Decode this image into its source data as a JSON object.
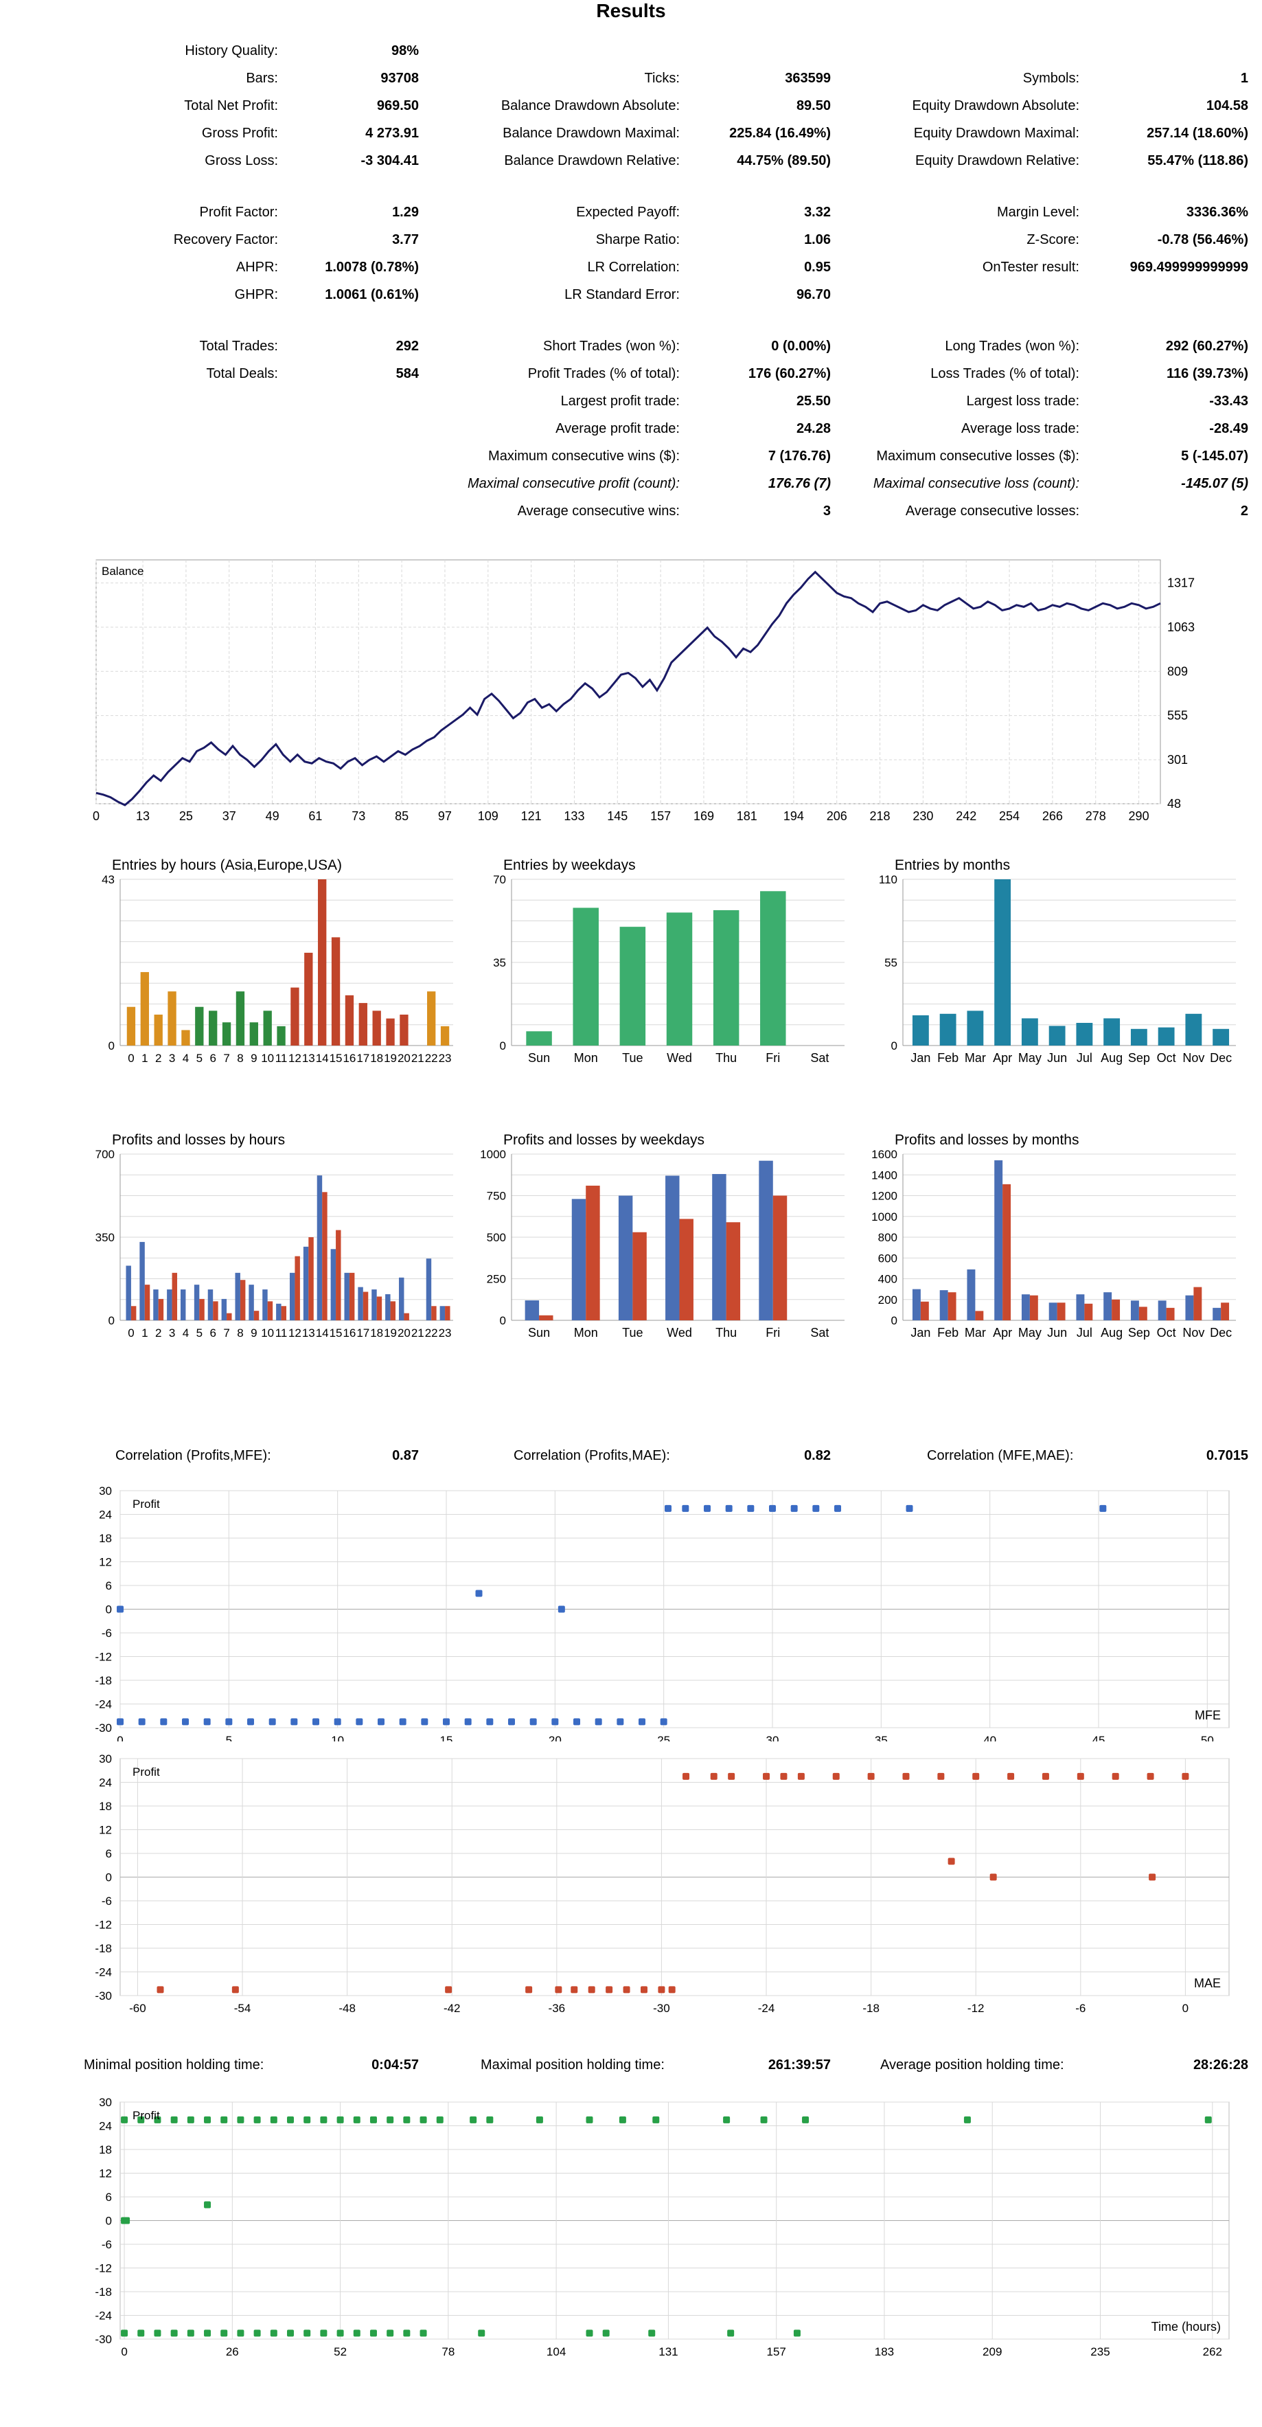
{
  "report": {
    "title": "Results",
    "stats": {
      "history_quality_label": "History Quality:",
      "history_quality": "98%",
      "bars_label": "Bars:",
      "bars": "93708",
      "ticks_label": "Ticks:",
      "ticks": "363599",
      "symbols_label": "Symbols:",
      "symbols": "1",
      "total_net_profit_label": "Total Net Profit:",
      "total_net_profit": "969.50",
      "balance_dd_abs_label": "Balance Drawdown Absolute:",
      "balance_dd_abs": "89.50",
      "equity_dd_abs_label": "Equity Drawdown Absolute:",
      "equity_dd_abs": "104.58",
      "gross_profit_label": "Gross Profit:",
      "gross_profit": "4 273.91",
      "balance_dd_max_label": "Balance Drawdown Maximal:",
      "balance_dd_max": "225.84 (16.49%)",
      "equity_dd_max_label": "Equity Drawdown Maximal:",
      "equity_dd_max": "257.14 (18.60%)",
      "gross_loss_label": "Gross Loss:",
      "gross_loss": "-3 304.41",
      "balance_dd_rel_label": "Balance Drawdown Relative:",
      "balance_dd_rel": "44.75% (89.50)",
      "equity_dd_rel_label": "Equity Drawdown Relative:",
      "equity_dd_rel": "55.47% (118.86)",
      "profit_factor_label": "Profit Factor:",
      "profit_factor": "1.29",
      "expected_payoff_label": "Expected Payoff:",
      "expected_payoff": "3.32",
      "margin_level_label": "Margin Level:",
      "margin_level": "3336.36%",
      "recovery_factor_label": "Recovery Factor:",
      "recovery_factor": "3.77",
      "sharpe_label": "Sharpe Ratio:",
      "sharpe": "1.06",
      "zscore_label": "Z-Score:",
      "zscore": "-0.78 (56.46%)",
      "ahpr_label": "AHPR:",
      "ahpr": "1.0078 (0.78%)",
      "lr_corr_label": "LR Correlation:",
      "lr_corr": "0.95",
      "ontester_label": "OnTester result:",
      "ontester": "969.499999999999",
      "ghpr_label": "GHPR:",
      "ghpr": "1.0061 (0.61%)",
      "lr_se_label": "LR Standard Error:",
      "lr_se": "96.70",
      "total_trades_label": "Total Trades:",
      "total_trades": "292",
      "short_trades_label": "Short Trades (won %):",
      "short_trades": "0 (0.00%)",
      "long_trades_label": "Long Trades (won %):",
      "long_trades": "292 (60.27%)",
      "total_deals_label": "Total Deals:",
      "total_deals": "584",
      "profit_trades_label": "Profit Trades (% of total):",
      "profit_trades": "176 (60.27%)",
      "loss_trades_label": "Loss Trades (% of total):",
      "loss_trades": "116 (39.73%)",
      "largest_profit_label": "Largest profit trade:",
      "largest_profit": "25.50",
      "largest_loss_label": "Largest loss trade:",
      "largest_loss": "-33.43",
      "avg_profit_label": "Average profit trade:",
      "avg_profit": "24.28",
      "avg_loss_label": "Average loss trade:",
      "avg_loss": "-28.49",
      "max_cons_wins_label": "Maximum consecutive wins ($):",
      "max_cons_wins": "7 (176.76)",
      "max_cons_losses_label": "Maximum consecutive losses ($):",
      "max_cons_losses": "5 (-145.07)",
      "maximal_cons_profit_label": "Maximal consecutive profit (count):",
      "maximal_cons_profit": "176.76 (7)",
      "maximal_cons_loss_label": "Maximal consecutive loss (count):",
      "maximal_cons_loss": "-145.07 (5)",
      "avg_cons_wins_label": "Average consecutive wins:",
      "avg_cons_wins": "3",
      "avg_cons_losses_label": "Average consecutive losses:",
      "avg_cons_losses": "2"
    },
    "correlations": {
      "pm_label": "Correlation (Profits,MFE):",
      "pm": "0.87",
      "pa_label": "Correlation (Profits,MAE):",
      "pa": "0.82",
      "ma_label": "Correlation (MFE,MAE):",
      "ma": "0.7015"
    },
    "holding": {
      "min_label": "Minimal position holding time:",
      "min": "0:04:57",
      "max_label": "Maximal position holding time:",
      "max": "261:39:57",
      "avg_label": "Average position holding time:",
      "avg": "28:26:28"
    }
  },
  "chart_data": [
    {
      "id": "balance",
      "type": "line",
      "title": "Balance",
      "x_ticks": [
        "0",
        "13",
        "25",
        "37",
        "49",
        "61",
        "73",
        "85",
        "97",
        "109",
        "121",
        "133",
        "145",
        "157",
        "169",
        "181",
        "194",
        "206",
        "218",
        "230",
        "242",
        "254",
        "266",
        "278",
        "290"
      ],
      "y_ticks": [
        "48",
        "301",
        "555",
        "809",
        "1063",
        "1317"
      ],
      "ylim": [
        48,
        1450
      ],
      "xlim": [
        0,
        296
      ],
      "x": [
        0,
        2,
        4,
        6,
        8,
        10,
        12,
        14,
        16,
        18,
        20,
        22,
        24,
        26,
        28,
        30,
        32,
        34,
        36,
        38,
        40,
        42,
        44,
        46,
        48,
        50,
        52,
        54,
        56,
        58,
        60,
        62,
        64,
        66,
        68,
        70,
        72,
        74,
        76,
        78,
        80,
        82,
        84,
        86,
        88,
        90,
        92,
        94,
        96,
        98,
        100,
        102,
        104,
        106,
        108,
        110,
        112,
        114,
        116,
        118,
        120,
        122,
        124,
        126,
        128,
        130,
        132,
        134,
        136,
        138,
        140,
        142,
        144,
        146,
        148,
        150,
        152,
        154,
        156,
        158,
        160,
        162,
        164,
        166,
        168,
        170,
        172,
        174,
        176,
        178,
        180,
        182,
        184,
        186,
        188,
        190,
        192,
        194,
        196,
        198,
        200,
        202,
        204,
        206,
        208,
        210,
        212,
        214,
        216,
        218,
        220,
        222,
        224,
        226,
        228,
        230,
        232,
        234,
        236,
        238,
        240,
        242,
        244,
        246,
        248,
        250,
        252,
        254,
        256,
        258,
        260,
        262,
        264,
        266,
        268,
        270,
        272,
        274,
        276,
        278,
        280,
        282,
        284,
        286,
        288,
        290,
        292,
        294,
        296
      ],
      "values": [
        110,
        100,
        85,
        60,
        40,
        75,
        120,
        170,
        210,
        180,
        230,
        270,
        310,
        290,
        350,
        370,
        400,
        360,
        330,
        380,
        330,
        300,
        260,
        300,
        350,
        390,
        330,
        290,
        330,
        290,
        280,
        310,
        290,
        280,
        250,
        290,
        310,
        270,
        300,
        320,
        290,
        320,
        350,
        330,
        360,
        380,
        410,
        430,
        470,
        500,
        530,
        560,
        600,
        560,
        650,
        680,
        640,
        590,
        540,
        570,
        630,
        650,
        600,
        620,
        580,
        620,
        650,
        700,
        740,
        710,
        660,
        690,
        740,
        790,
        800,
        770,
        720,
        760,
        700,
        770,
        860,
        900,
        940,
        980,
        1020,
        1060,
        1010,
        980,
        940,
        890,
        940,
        920,
        960,
        1020,
        1080,
        1130,
        1200,
        1250,
        1290,
        1340,
        1380,
        1340,
        1300,
        1260,
        1240,
        1230,
        1200,
        1180,
        1150,
        1200,
        1210,
        1190,
        1170,
        1150,
        1160,
        1190,
        1170,
        1160,
        1190,
        1210,
        1230,
        1200,
        1170,
        1180,
        1210,
        1190,
        1160,
        1170,
        1190,
        1180,
        1200,
        1160,
        1170,
        1190,
        1180,
        1200,
        1190,
        1170,
        1160,
        1180,
        1200,
        1190,
        1170,
        1180,
        1200,
        1190,
        1170,
        1180,
        1200
      ]
    },
    {
      "id": "entries_hours",
      "type": "bar",
      "title": "Entries by hours (Asia,Europe,USA)",
      "categories": [
        "0",
        "1",
        "2",
        "3",
        "4",
        "5",
        "6",
        "7",
        "8",
        "9",
        "10",
        "11",
        "12",
        "13",
        "14",
        "15",
        "16",
        "17",
        "18",
        "19",
        "20",
        "21",
        "22",
        "23"
      ],
      "values": [
        10,
        19,
        8,
        14,
        4,
        10,
        9,
        6,
        14,
        6,
        9,
        5,
        15,
        24,
        43,
        28,
        13,
        11,
        9,
        7,
        8,
        0,
        14,
        5
      ],
      "y_ticks": [
        "0",
        "43"
      ],
      "ylim": [
        0,
        43
      ]
    },
    {
      "id": "entries_weekdays",
      "type": "bar",
      "title": "Entries by weekdays",
      "categories": [
        "Sun",
        "Mon",
        "Tue",
        "Wed",
        "Thu",
        "Fri",
        "Sat"
      ],
      "values": [
        6,
        58,
        50,
        56,
        57,
        65,
        0
      ],
      "y_ticks": [
        "0",
        "35",
        "70"
      ],
      "ylim": [
        0,
        70
      ]
    },
    {
      "id": "entries_months",
      "type": "bar",
      "title": "Entries by months",
      "categories": [
        "Jan",
        "Feb",
        "Mar",
        "Apr",
        "May",
        "Jun",
        "Jul",
        "Aug",
        "Sep",
        "Oct",
        "Nov",
        "Dec"
      ],
      "values": [
        20,
        21,
        23,
        110,
        18,
        13,
        15,
        18,
        11,
        12,
        21,
        11
      ],
      "y_ticks": [
        "0",
        "55",
        "110"
      ],
      "ylim": [
        0,
        110
      ]
    },
    {
      "id": "pl_hours",
      "type": "bar",
      "title": "Profits and losses by hours",
      "categories": [
        "0",
        "1",
        "2",
        "3",
        "4",
        "5",
        "6",
        "7",
        "8",
        "9",
        "10",
        "11",
        "12",
        "13",
        "14",
        "15",
        "16",
        "17",
        "18",
        "19",
        "20",
        "21",
        "22",
        "23"
      ],
      "series": [
        {
          "name": "Profits",
          "values": [
            230,
            330,
            130,
            130,
            130,
            150,
            130,
            90,
            200,
            150,
            130,
            70,
            200,
            310,
            610,
            300,
            200,
            140,
            130,
            110,
            180,
            0,
            260,
            60
          ]
        },
        {
          "name": "Losses",
          "values": [
            60,
            150,
            90,
            200,
            0,
            90,
            80,
            30,
            170,
            40,
            80,
            60,
            270,
            350,
            540,
            380,
            200,
            120,
            100,
            80,
            30,
            0,
            60,
            60
          ]
        }
      ],
      "y_ticks": [
        "0",
        "350",
        "700"
      ],
      "ylim": [
        0,
        700
      ]
    },
    {
      "id": "pl_weekdays",
      "type": "bar",
      "title": "Profits and losses by weekdays",
      "categories": [
        "Sun",
        "Mon",
        "Tue",
        "Wed",
        "Thu",
        "Fri",
        "Sat"
      ],
      "series": [
        {
          "name": "Profits",
          "values": [
            120,
            730,
            750,
            870,
            880,
            960,
            0
          ]
        },
        {
          "name": "Losses",
          "values": [
            30,
            810,
            530,
            610,
            590,
            750,
            0
          ]
        }
      ],
      "y_ticks": [
        "0",
        "250",
        "500",
        "750",
        "1000"
      ],
      "ylim": [
        0,
        1000
      ]
    },
    {
      "id": "pl_months",
      "type": "bar",
      "title": "Profits and losses by months",
      "categories": [
        "Jan",
        "Feb",
        "Mar",
        "Apr",
        "May",
        "Jun",
        "Jul",
        "Aug",
        "Sep",
        "Oct",
        "Nov",
        "Dec"
      ],
      "series": [
        {
          "name": "Profits",
          "values": [
            300,
            290,
            490,
            1540,
            250,
            170,
            250,
            270,
            190,
            190,
            240,
            120
          ]
        },
        {
          "name": "Losses",
          "values": [
            180,
            270,
            90,
            1310,
            240,
            170,
            160,
            200,
            130,
            120,
            320,
            170
          ]
        }
      ],
      "y_ticks": [
        "0",
        "200",
        "400",
        "600",
        "800",
        "1000",
        "1200",
        "1400",
        "1600"
      ],
      "ylim": [
        0,
        1600
      ]
    },
    {
      "id": "mfe",
      "type": "scatter",
      "title": "Profit",
      "xlabel": "MFE",
      "x_ticks": [
        "0",
        "5",
        "10",
        "15",
        "20",
        "25",
        "30",
        "35",
        "40",
        "45",
        "50"
      ],
      "y_ticks": [
        "30",
        "24",
        "18",
        "12",
        "6",
        "0",
        "-6",
        "-12",
        "-18",
        "-24",
        "-30"
      ],
      "xlim": [
        0,
        51
      ],
      "ylim": [
        -30,
        30
      ],
      "x": [
        0,
        16.5,
        20.3,
        0,
        1,
        2,
        3,
        4,
        5,
        6,
        7,
        8,
        9,
        10,
        11,
        12,
        13,
        14,
        15,
        16,
        17,
        18,
        19,
        20,
        21,
        22,
        23,
        24,
        25,
        25.2,
        26,
        27,
        28,
        29,
        30,
        31,
        32,
        33,
        36.3,
        45.2
      ],
      "y": [
        0,
        4,
        0,
        -28.5,
        -28.5,
        -28.5,
        -28.5,
        -28.5,
        -28.5,
        -28.5,
        -28.5,
        -28.5,
        -28.5,
        -28.5,
        -28.5,
        -28.5,
        -28.5,
        -28.5,
        -28.5,
        -28.5,
        -28.5,
        -28.5,
        -28.5,
        -28.5,
        -28.5,
        -28.5,
        -28.5,
        -28.5,
        -28.5,
        25.5,
        25.5,
        25.5,
        25.5,
        25.5,
        25.5,
        25.5,
        25.5,
        25.5,
        25.5,
        25.5
      ]
    },
    {
      "id": "mae",
      "type": "scatter",
      "title": "Profit",
      "xlabel": "MAE",
      "x_ticks": [
        "-60",
        "-54",
        "-48",
        "-42",
        "-36",
        "-30",
        "-24",
        "-18",
        "-12",
        "-6",
        "0"
      ],
      "y_ticks": [
        "30",
        "24",
        "18",
        "12",
        "6",
        "0",
        "-6",
        "-12",
        "-18",
        "-24",
        "-30"
      ],
      "xlim": [
        -61,
        2.5
      ],
      "ylim": [
        -30,
        30
      ],
      "x": [
        -58.7,
        -54.4,
        -42.2,
        -37.6,
        -35.9,
        -35,
        -34,
        -33,
        -32,
        -31,
        -30,
        -29.4,
        -28.6,
        -27,
        -26,
        -24,
        -23,
        -22,
        -20,
        -18,
        -16,
        -14,
        -12,
        -10,
        -8,
        -6,
        -4,
        -2,
        0,
        -13.4,
        -11,
        -1.9
      ],
      "y": [
        -28.5,
        -28.5,
        -28.5,
        -28.5,
        -28.5,
        -28.5,
        -28.5,
        -28.5,
        -28.5,
        -28.5,
        -28.5,
        -28.5,
        25.5,
        25.5,
        25.5,
        25.5,
        25.5,
        25.5,
        25.5,
        25.5,
        25.5,
        25.5,
        25.5,
        25.5,
        25.5,
        25.5,
        25.5,
        25.5,
        25.5,
        4,
        0,
        0
      ]
    },
    {
      "id": "holding",
      "type": "scatter",
      "title": "Profit",
      "xlabel": "Time (hours)",
      "x_ticks": [
        "0",
        "26",
        "52",
        "78",
        "104",
        "131",
        "157",
        "183",
        "209",
        "235",
        "262"
      ],
      "y_ticks": [
        "30",
        "24",
        "18",
        "12",
        "6",
        "0",
        "-6",
        "-12",
        "-18",
        "-24",
        "-30"
      ],
      "xlim": [
        -1,
        266
      ],
      "ylim": [
        -30,
        30
      ],
      "x": [
        0,
        4,
        8,
        12,
        16,
        20,
        24,
        28,
        32,
        36,
        40,
        44,
        48,
        52,
        56,
        60,
        64,
        68,
        72,
        76,
        84,
        88,
        100,
        112,
        120,
        128,
        145,
        154,
        164,
        203,
        261,
        0,
        0.5,
        20,
        0,
        4,
        8,
        12,
        16,
        20,
        24,
        28,
        32,
        36,
        40,
        44,
        48,
        52,
        56,
        60,
        64,
        68,
        72,
        86,
        112,
        116,
        127,
        146,
        162
      ],
      "y": [
        25.5,
        25.5,
        25.5,
        25.5,
        25.5,
        25.5,
        25.5,
        25.5,
        25.5,
        25.5,
        25.5,
        25.5,
        25.5,
        25.5,
        25.5,
        25.5,
        25.5,
        25.5,
        25.5,
        25.5,
        25.5,
        25.5,
        25.5,
        25.5,
        25.5,
        25.5,
        25.5,
        25.5,
        25.5,
        25.5,
        25.5,
        0,
        0,
        4,
        -28.5,
        -28.5,
        -28.5,
        -28.5,
        -28.5,
        -28.5,
        -28.5,
        -28.5,
        -28.5,
        -28.5,
        -28.5,
        -28.5,
        -28.5,
        -28.5,
        -28.5,
        -28.5,
        -28.5,
        -28.5,
        -28.5,
        -28.5,
        -28.5,
        -28.5,
        -28.5,
        -28.5,
        -28.5
      ]
    }
  ],
  "colors": {
    "balance_line": "#1a1a66",
    "asia": "#d9901f",
    "europe": "#2e8b3e",
    "usa": "#c0442a",
    "weekday_bar": "#3cae6e",
    "month_bar": "#1f83a3",
    "profit_bar": "#4a6fb5",
    "loss_bar": "#c9492e",
    "mfe_dot": "#3a6bc4",
    "mae_dot": "#c9492e",
    "hold_dot": "#27a047",
    "grid": "#d9d9d9"
  }
}
